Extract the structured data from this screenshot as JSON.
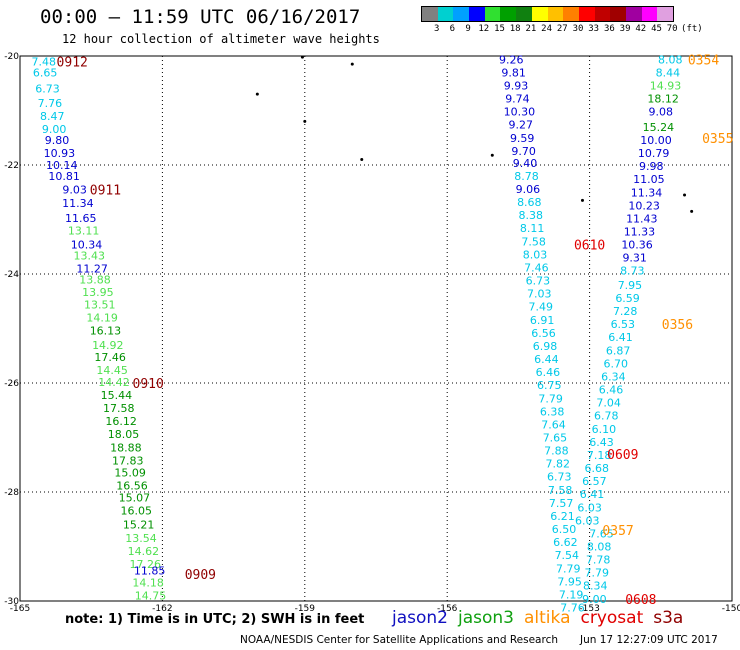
{
  "header": {
    "title": "00:00 — 11:59 UTC 06/16/2017",
    "subtitle": "12 hour collection of altimeter wave heights"
  },
  "colorbar": {
    "colors": [
      "#808080",
      "#00d0d0",
      "#00a0ff",
      "#0000ff",
      "#30e030",
      "#00a000",
      "#108010",
      "#ffff00",
      "#ffc000",
      "#ff8000",
      "#ff0000",
      "#c00000",
      "#a00000",
      "#a000a0",
      "#ff00ff",
      "#e0a0e0"
    ],
    "labels": [
      "3",
      "6",
      "9",
      "12",
      "15",
      "18",
      "21",
      "24",
      "27",
      "30",
      "33",
      "36",
      "39",
      "42",
      "45",
      "70",
      "(ft)"
    ]
  },
  "axes": {
    "x_ticks": [
      "-165",
      "-162",
      "-159",
      "-156",
      "-153",
      "-150"
    ],
    "y_ticks": [
      "-20",
      "-22",
      "-24",
      "-26",
      "-28",
      "-30"
    ]
  },
  "colors": {
    "c_lt": "#00c8e8",
    "c_blue": "#0000d0",
    "c_lg": "#50e050",
    "c_dg": "#009000",
    "c_red": "#e00000",
    "c_dred": "#900000",
    "c_orange": "#ff9000"
  },
  "tracks": [
    {
      "id": "track-left",
      "points": [
        {
          "lon": -164.5,
          "lat": -20.1,
          "v": "7.48",
          "c": "c_lt"
        },
        {
          "lon": -164.47,
          "lat": -20.3,
          "v": "6.65",
          "c": "c_lt"
        },
        {
          "lon": -164.42,
          "lat": -20.6,
          "v": "6.73",
          "c": "c_lt"
        },
        {
          "lon": -164.37,
          "lat": -20.86,
          "v": "7.76",
          "c": "c_lt"
        },
        {
          "lon": -164.32,
          "lat": -21.1,
          "v": "8.47",
          "c": "c_lt"
        },
        {
          "lon": -164.28,
          "lat": -21.34,
          "v": "9.00",
          "c": "c_lt"
        },
        {
          "lon": -164.22,
          "lat": -21.54,
          "v": "9.80",
          "c": "c_blue"
        },
        {
          "lon": -164.17,
          "lat": -21.78,
          "v": "10.93",
          "c": "c_blue"
        },
        {
          "lon": -164.12,
          "lat": -22.0,
          "v": "10.14",
          "c": "c_blue"
        },
        {
          "lon": -164.07,
          "lat": -22.2,
          "v": "10.81",
          "c": "c_blue"
        },
        {
          "lon": -163.85,
          "lat": -22.45,
          "v": "9.03",
          "c": "c_blue"
        },
        {
          "lon": -163.78,
          "lat": -22.7,
          "v": "11.34",
          "c": "c_blue"
        },
        {
          "lon": -163.72,
          "lat": -22.97,
          "v": "11.65",
          "c": "c_blue"
        },
        {
          "lon": -163.66,
          "lat": -23.2,
          "v": "13.11",
          "c": "c_lg"
        },
        {
          "lon": -163.6,
          "lat": -23.46,
          "v": "10.34",
          "c": "c_blue"
        },
        {
          "lon": -163.54,
          "lat": -23.66,
          "v": "13.43",
          "c": "c_lg"
        },
        {
          "lon": -163.48,
          "lat": -23.9,
          "v": "11.27",
          "c": "c_blue"
        },
        {
          "lon": -163.42,
          "lat": -24.1,
          "v": "13.88",
          "c": "c_lg"
        },
        {
          "lon": -163.36,
          "lat": -24.33,
          "v": "13.95",
          "c": "c_lg"
        },
        {
          "lon": -163.32,
          "lat": -24.56,
          "v": "13.51",
          "c": "c_lg"
        },
        {
          "lon": -163.27,
          "lat": -24.8,
          "v": "14.19",
          "c": "c_lg"
        },
        {
          "lon": -163.2,
          "lat": -25.04,
          "v": "16.13",
          "c": "c_dg"
        },
        {
          "lon": -163.15,
          "lat": -25.3,
          "v": "14.92",
          "c": "c_lg"
        },
        {
          "lon": -163.1,
          "lat": -25.52,
          "v": "17.46",
          "c": "c_dg"
        },
        {
          "lon": -163.06,
          "lat": -25.76,
          "v": "14.45",
          "c": "c_lg"
        },
        {
          "lon": -163.02,
          "lat": -25.98,
          "v": "14.42",
          "c": "c_lg"
        },
        {
          "lon": -162.97,
          "lat": -26.22,
          "v": "15.44",
          "c": "c_dg"
        },
        {
          "lon": -162.92,
          "lat": -26.46,
          "v": "17.58",
          "c": "c_dg"
        },
        {
          "lon": -162.87,
          "lat": -26.7,
          "v": "16.12",
          "c": "c_dg"
        },
        {
          "lon": -162.82,
          "lat": -26.94,
          "v": "18.05",
          "c": "c_dg"
        },
        {
          "lon": -162.77,
          "lat": -27.18,
          "v": "18.88",
          "c": "c_dg"
        },
        {
          "lon": -162.73,
          "lat": -27.42,
          "v": "17.83",
          "c": "c_dg"
        },
        {
          "lon": -162.68,
          "lat": -27.64,
          "v": "15.09",
          "c": "c_dg"
        },
        {
          "lon": -162.64,
          "lat": -27.88,
          "v": "16.56",
          "c": "c_dg"
        },
        {
          "lon": -162.59,
          "lat": -28.1,
          "v": "15.07",
          "c": "c_dg"
        },
        {
          "lon": -162.55,
          "lat": -28.34,
          "v": "16.05",
          "c": "c_dg"
        },
        {
          "lon": -162.5,
          "lat": -28.6,
          "v": "15.21",
          "c": "c_dg"
        },
        {
          "lon": -162.45,
          "lat": -28.84,
          "v": "13.54",
          "c": "c_lg"
        },
        {
          "lon": -162.4,
          "lat": -29.08,
          "v": "14.62",
          "c": "c_lg"
        },
        {
          "lon": -162.36,
          "lat": -29.32,
          "v": "17.26",
          "c": "c_lg"
        },
        {
          "lon": -162.27,
          "lat": -29.44,
          "v": "11.85",
          "c": "c_blue"
        },
        {
          "lon": -162.3,
          "lat": -29.66,
          "v": "14.18",
          "c": "c_lg"
        },
        {
          "lon": -162.25,
          "lat": -29.9,
          "v": "14.75",
          "c": "c_lg"
        }
      ]
    },
    {
      "id": "track-middle",
      "points": [
        {
          "lon": -154.65,
          "lat": -20.06,
          "v": "9.26",
          "c": "c_blue"
        },
        {
          "lon": -154.6,
          "lat": -20.3,
          "v": "9.81",
          "c": "c_blue"
        },
        {
          "lon": -154.55,
          "lat": -20.54,
          "v": "9.93",
          "c": "c_blue"
        },
        {
          "lon": -154.52,
          "lat": -20.78,
          "v": "9.74",
          "c": "c_blue"
        },
        {
          "lon": -154.48,
          "lat": -21.02,
          "v": "10.30",
          "c": "c_blue"
        },
        {
          "lon": -154.45,
          "lat": -21.26,
          "v": "9.27",
          "c": "c_blue"
        },
        {
          "lon": -154.42,
          "lat": -21.5,
          "v": "9.59",
          "c": "c_blue"
        },
        {
          "lon": -154.39,
          "lat": -21.74,
          "v": "9.70",
          "c": "c_blue"
        },
        {
          "lon": -154.36,
          "lat": -21.96,
          "v": "9.40",
          "c": "c_blue"
        },
        {
          "lon": -154.33,
          "lat": -22.2,
          "v": "8.78",
          "c": "c_lt"
        },
        {
          "lon": -154.3,
          "lat": -22.44,
          "v": "9.06",
          "c": "c_blue"
        },
        {
          "lon": -154.27,
          "lat": -22.68,
          "v": "8.68",
          "c": "c_lt"
        },
        {
          "lon": -154.24,
          "lat": -22.92,
          "v": "8.38",
          "c": "c_lt"
        },
        {
          "lon": -154.21,
          "lat": -23.16,
          "v": "8.11",
          "c": "c_lt"
        },
        {
          "lon": -154.18,
          "lat": -23.4,
          "v": "7.58",
          "c": "c_lt"
        },
        {
          "lon": -154.15,
          "lat": -23.64,
          "v": "8.03",
          "c": "c_lt"
        },
        {
          "lon": -154.12,
          "lat": -23.88,
          "v": "7.46",
          "c": "c_lt"
        },
        {
          "lon": -154.09,
          "lat": -24.12,
          "v": "6.73",
          "c": "c_lt"
        },
        {
          "lon": -154.06,
          "lat": -24.36,
          "v": "7.03",
          "c": "c_lt"
        },
        {
          "lon": -154.03,
          "lat": -24.6,
          "v": "7.49",
          "c": "c_lt"
        },
        {
          "lon": -154.0,
          "lat": -24.84,
          "v": "6.91",
          "c": "c_lt"
        },
        {
          "lon": -153.97,
          "lat": -25.08,
          "v": "6.56",
          "c": "c_lt"
        },
        {
          "lon": -153.94,
          "lat": -25.32,
          "v": "6.98",
          "c": "c_lt"
        },
        {
          "lon": -153.91,
          "lat": -25.56,
          "v": "6.44",
          "c": "c_lt"
        },
        {
          "lon": -153.88,
          "lat": -25.8,
          "v": "6.46",
          "c": "c_lt"
        },
        {
          "lon": -153.85,
          "lat": -26.04,
          "v": "6.75",
          "c": "c_lt"
        },
        {
          "lon": -153.82,
          "lat": -26.28,
          "v": "7.79",
          "c": "c_lt"
        },
        {
          "lon": -153.79,
          "lat": -26.52,
          "v": "6.38",
          "c": "c_lt"
        },
        {
          "lon": -153.76,
          "lat": -26.76,
          "v": "7.64",
          "c": "c_lt"
        },
        {
          "lon": -153.73,
          "lat": -27.0,
          "v": "7.65",
          "c": "c_lt"
        },
        {
          "lon": -153.7,
          "lat": -27.24,
          "v": "7.88",
          "c": "c_lt"
        },
        {
          "lon": -153.67,
          "lat": -27.48,
          "v": "7.82",
          "c": "c_lt"
        },
        {
          "lon": -153.64,
          "lat": -27.72,
          "v": "6.73",
          "c": "c_lt"
        },
        {
          "lon": -153.62,
          "lat": -27.96,
          "v": "7.58",
          "c": "c_lt"
        },
        {
          "lon": -153.6,
          "lat": -28.2,
          "v": "7.57",
          "c": "c_lt"
        },
        {
          "lon": -153.57,
          "lat": -28.44,
          "v": "6.21",
          "c": "c_lt"
        },
        {
          "lon": -153.54,
          "lat": -28.68,
          "v": "6.50",
          "c": "c_lt"
        },
        {
          "lon": -153.51,
          "lat": -28.92,
          "v": "6.62",
          "c": "c_lt"
        },
        {
          "lon": -153.48,
          "lat": -29.16,
          "v": "7.54",
          "c": "c_lt"
        },
        {
          "lon": -153.45,
          "lat": -29.4,
          "v": "7.79",
          "c": "c_lt"
        },
        {
          "lon": -153.42,
          "lat": -29.64,
          "v": "7.95",
          "c": "c_lt"
        },
        {
          "lon": -153.39,
          "lat": -29.88,
          "v": "7.19",
          "c": "c_lt"
        },
        {
          "lon": -153.36,
          "lat": -30.12,
          "v": "7.76",
          "c": "c_lt"
        }
      ]
    },
    {
      "id": "track-right",
      "points": [
        {
          "lon": -151.3,
          "lat": -20.06,
          "v": "8.08",
          "c": "c_lt"
        },
        {
          "lon": -151.35,
          "lat": -20.3,
          "v": "8.44",
          "c": "c_lt"
        },
        {
          "lon": -151.4,
          "lat": -20.54,
          "v": "14.93",
          "c": "c_lg"
        },
        {
          "lon": -151.45,
          "lat": -20.78,
          "v": "18.12",
          "c": "c_dg"
        },
        {
          "lon": -151.5,
          "lat": -21.02,
          "v": "9.08",
          "c": "c_blue"
        },
        {
          "lon": -151.55,
          "lat": -21.3,
          "v": "15.24",
          "c": "c_dg"
        },
        {
          "lon": -151.6,
          "lat": -21.54,
          "v": "10.00",
          "c": "c_blue"
        },
        {
          "lon": -151.65,
          "lat": -21.78,
          "v": "10.79",
          "c": "c_blue"
        },
        {
          "lon": -151.7,
          "lat": -22.02,
          "v": "9.98",
          "c": "c_blue"
        },
        {
          "lon": -151.75,
          "lat": -22.26,
          "v": "11.05",
          "c": "c_blue"
        },
        {
          "lon": -151.8,
          "lat": -22.5,
          "v": "11.34",
          "c": "c_blue"
        },
        {
          "lon": -151.85,
          "lat": -22.74,
          "v": "10.23",
          "c": "c_blue"
        },
        {
          "lon": -151.9,
          "lat": -22.98,
          "v": "11.43",
          "c": "c_blue"
        },
        {
          "lon": -151.95,
          "lat": -23.22,
          "v": "11.33",
          "c": "c_blue"
        },
        {
          "lon": -152.0,
          "lat": -23.46,
          "v": "10.36",
          "c": "c_blue"
        },
        {
          "lon": -152.05,
          "lat": -23.7,
          "v": "9.31",
          "c": "c_blue"
        },
        {
          "lon": -152.1,
          "lat": -23.94,
          "v": "8.73",
          "c": "c_lt"
        },
        {
          "lon": -152.15,
          "lat": -24.2,
          "v": "7.95",
          "c": "c_lt"
        },
        {
          "lon": -152.2,
          "lat": -24.44,
          "v": "6.59",
          "c": "c_lt"
        },
        {
          "lon": -152.25,
          "lat": -24.68,
          "v": "7.28",
          "c": "c_lt"
        },
        {
          "lon": -152.3,
          "lat": -24.92,
          "v": "6.53",
          "c": "c_lt"
        },
        {
          "lon": -152.35,
          "lat": -25.16,
          "v": "6.41",
          "c": "c_lt"
        },
        {
          "lon": -152.4,
          "lat": -25.4,
          "v": "6.87",
          "c": "c_lt"
        },
        {
          "lon": -152.45,
          "lat": -25.64,
          "v": "6.70",
          "c": "c_lt"
        },
        {
          "lon": -152.5,
          "lat": -25.88,
          "v": "6.34",
          "c": "c_lt"
        },
        {
          "lon": -152.55,
          "lat": -26.12,
          "v": "6.46",
          "c": "c_lt"
        },
        {
          "lon": -152.6,
          "lat": -26.36,
          "v": "7.04",
          "c": "c_lt"
        },
        {
          "lon": -152.65,
          "lat": -26.6,
          "v": "6.78",
          "c": "c_lt"
        },
        {
          "lon": -152.7,
          "lat": -26.84,
          "v": "6.10",
          "c": "c_lt"
        },
        {
          "lon": -152.75,
          "lat": -27.08,
          "v": "6.43",
          "c": "c_lt"
        },
        {
          "lon": -152.8,
          "lat": -27.32,
          "v": "7.18",
          "c": "c_lt"
        },
        {
          "lon": -152.85,
          "lat": -27.56,
          "v": "6.68",
          "c": "c_lt"
        },
        {
          "lon": -152.9,
          "lat": -27.8,
          "v": "6.57",
          "c": "c_lt"
        },
        {
          "lon": -152.95,
          "lat": -28.04,
          "v": "6.41",
          "c": "c_lt"
        },
        {
          "lon": -153.0,
          "lat": -28.28,
          "v": "6.03",
          "c": "c_lt"
        },
        {
          "lon": -153.05,
          "lat": -28.52,
          "v": "6.03",
          "c": "c_lt"
        },
        {
          "lon": -152.75,
          "lat": -28.76,
          "v": "7.65",
          "c": "c_lt"
        },
        {
          "lon": -152.8,
          "lat": -29.0,
          "v": "8.08",
          "c": "c_lt"
        },
        {
          "lon": -152.82,
          "lat": -29.24,
          "v": "7.78",
          "c": "c_lt"
        },
        {
          "lon": -152.85,
          "lat": -29.48,
          "v": "7.79",
          "c": "c_lt"
        },
        {
          "lon": -152.88,
          "lat": -29.72,
          "v": "8.34",
          "c": "c_lt"
        },
        {
          "lon": -152.9,
          "lat": -29.96,
          "v": "9.00",
          "c": "c_lt"
        }
      ]
    }
  ],
  "time_labels": [
    {
      "lon": -163.9,
      "lat": -20.1,
      "t": "0912",
      "c": "c_dred"
    },
    {
      "lon": -163.2,
      "lat": -22.45,
      "t": "0911",
      "c": "c_dred"
    },
    {
      "lon": -162.3,
      "lat": -26.0,
      "t": "0910",
      "c": "c_dred"
    },
    {
      "lon": -161.2,
      "lat": -29.5,
      "t": "0909",
      "c": "c_dred"
    },
    {
      "lon": -150.6,
      "lat": -20.06,
      "t": "0354",
      "c": "c_orange"
    },
    {
      "lon": -150.3,
      "lat": -21.5,
      "t": "0355",
      "c": "c_orange"
    },
    {
      "lon": -151.15,
      "lat": -24.92,
      "t": "0356",
      "c": "c_orange"
    },
    {
      "lon": -152.4,
      "lat": -28.7,
      "t": "0357",
      "c": "c_orange"
    },
    {
      "lon": -153.0,
      "lat": -23.46,
      "t": "0610",
      "c": "c_red"
    },
    {
      "lon": -152.3,
      "lat": -27.3,
      "t": "0609",
      "c": "c_red"
    },
    {
      "lon": -151.92,
      "lat": -29.96,
      "t": "0608",
      "c": "c_red"
    }
  ],
  "islands": [
    {
      "lon": -159.05,
      "lat": -20.02
    },
    {
      "lon": -158.0,
      "lat": -20.15
    },
    {
      "lon": -160.0,
      "lat": -20.7
    },
    {
      "lon": -159.0,
      "lat": -21.2
    },
    {
      "lon": -157.8,
      "lat": -21.9
    },
    {
      "lon": -155.05,
      "lat": -21.82
    },
    {
      "lon": -151.0,
      "lat": -22.55
    },
    {
      "lon": -153.15,
      "lat": -22.65
    },
    {
      "lon": -150.85,
      "lat": -22.85
    }
  ],
  "footer": {
    "note": "note: 1) Time is in UTC; 2) SWH is in feet",
    "legend": [
      {
        "name": "jason2",
        "color": "#1010c0"
      },
      {
        "name": "jason3",
        "color": "#10a010"
      },
      {
        "name": "altika",
        "color": "#ff9000"
      },
      {
        "name": "cryosat",
        "color": "#e00000"
      },
      {
        "name": "s3a",
        "color": "#900000"
      }
    ],
    "credit": "NOAA/NESDIS Center for Satellite Applications and Research",
    "timestamp": "Jun 17 12:27:09 UTC 2017"
  }
}
